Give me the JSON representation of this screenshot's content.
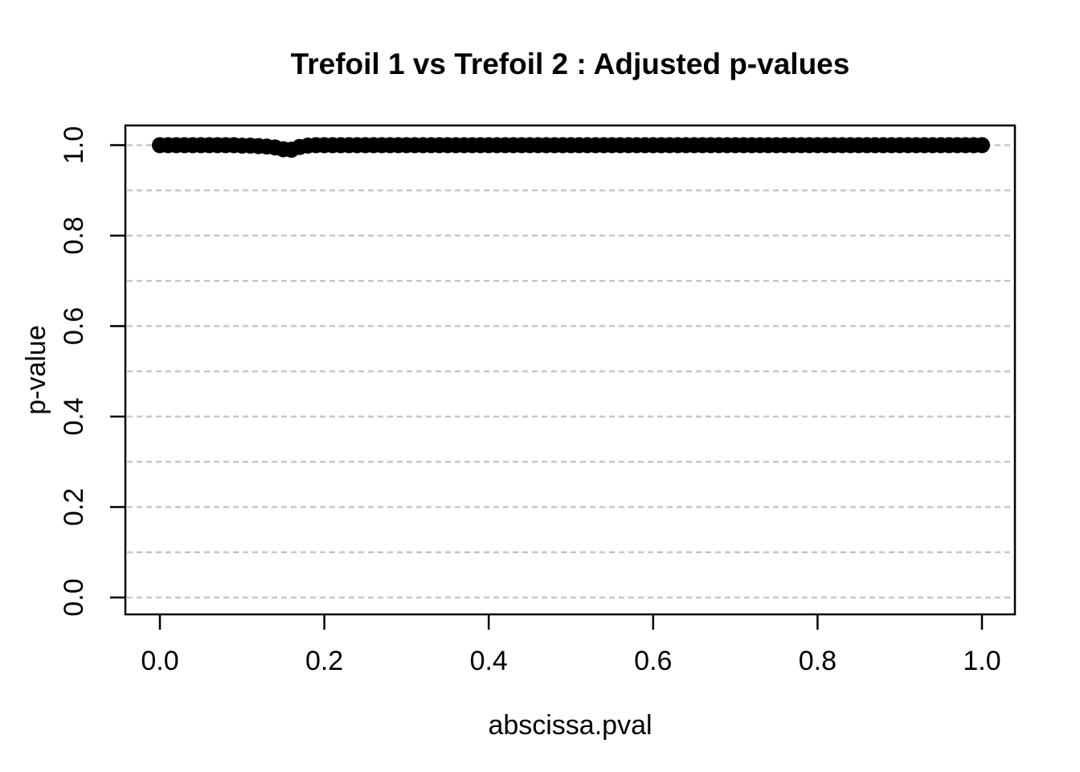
{
  "chart_data": {
    "type": "scatter",
    "title": "Trefoil 1 vs Trefoil 2 : Adjusted p-values",
    "xlabel": "abscissa.pval",
    "ylabel": "p-value",
    "xlim": [
      0,
      1
    ],
    "ylim": [
      0,
      1
    ],
    "xticks": {
      "values": [
        0,
        0.2,
        0.4,
        0.6,
        0.8,
        1.0
      ],
      "labels": [
        "0.0",
        "0.2",
        "0.4",
        "0.6",
        "0.8",
        "1.0"
      ]
    },
    "yticks": {
      "values": [
        0,
        0.2,
        0.4,
        0.6,
        0.8,
        1.0
      ],
      "labels": [
        "0.0",
        "0.2",
        "0.4",
        "0.6",
        "0.8",
        "1.0"
      ]
    },
    "grid": {
      "orientation": "horizontal",
      "values": [
        0,
        0.1,
        0.2,
        0.3,
        0.4,
        0.5,
        0.6,
        0.7,
        0.8,
        0.9,
        1.0
      ],
      "style": "dashed",
      "color": "#c7c7c7"
    },
    "legend": null,
    "point_style": {
      "shape": "filled-circle",
      "color": "#000000",
      "radius_px": 10
    },
    "frame_color": "#000000",
    "background_color": "#ffffff",
    "x": [
      0.0,
      0.01,
      0.02,
      0.03,
      0.04,
      0.05,
      0.06,
      0.07,
      0.08,
      0.09,
      0.1,
      0.11,
      0.12,
      0.13,
      0.14,
      0.15,
      0.16,
      0.17,
      0.18,
      0.19,
      0.2,
      0.21,
      0.22,
      0.23,
      0.24,
      0.25,
      0.26,
      0.27,
      0.28,
      0.29,
      0.3,
      0.31,
      0.32,
      0.33,
      0.34,
      0.35,
      0.36,
      0.37,
      0.38,
      0.39,
      0.4,
      0.41,
      0.42,
      0.43,
      0.44,
      0.45,
      0.46,
      0.47,
      0.48,
      0.49,
      0.5,
      0.51,
      0.52,
      0.53,
      0.54,
      0.55,
      0.56,
      0.57,
      0.58,
      0.59,
      0.6,
      0.61,
      0.62,
      0.63,
      0.64,
      0.65,
      0.66,
      0.67,
      0.68,
      0.69,
      0.7,
      0.71,
      0.72,
      0.73,
      0.74,
      0.75,
      0.76,
      0.77,
      0.78,
      0.79,
      0.8,
      0.81,
      0.82,
      0.83,
      0.84,
      0.85,
      0.86,
      0.87,
      0.88,
      0.89,
      0.9,
      0.91,
      0.92,
      0.93,
      0.94,
      0.95,
      0.96,
      0.97,
      0.98,
      0.99,
      1.0
    ],
    "y": [
      1,
      1,
      1,
      1,
      1,
      1,
      1,
      1,
      1,
      1,
      0.999,
      0.999,
      0.998,
      0.997,
      0.995,
      0.991,
      0.99,
      0.996,
      0.999,
      1,
      1,
      1,
      1,
      1,
      1,
      1,
      1,
      1,
      1,
      1,
      1,
      1,
      1,
      1,
      1,
      1,
      1,
      1,
      1,
      1,
      1,
      1,
      1,
      1,
      1,
      1,
      1,
      1,
      1,
      1,
      1,
      1,
      1,
      1,
      1,
      1,
      1,
      1,
      1,
      1,
      1,
      1,
      1,
      1,
      1,
      1,
      1,
      1,
      1,
      1,
      1,
      1,
      1,
      1,
      1,
      1,
      1,
      1,
      1,
      1,
      1,
      1,
      1,
      1,
      1,
      1,
      1,
      1,
      1,
      1,
      1,
      1,
      1,
      1,
      1,
      1,
      1,
      1,
      1,
      1,
      1
    ]
  }
}
